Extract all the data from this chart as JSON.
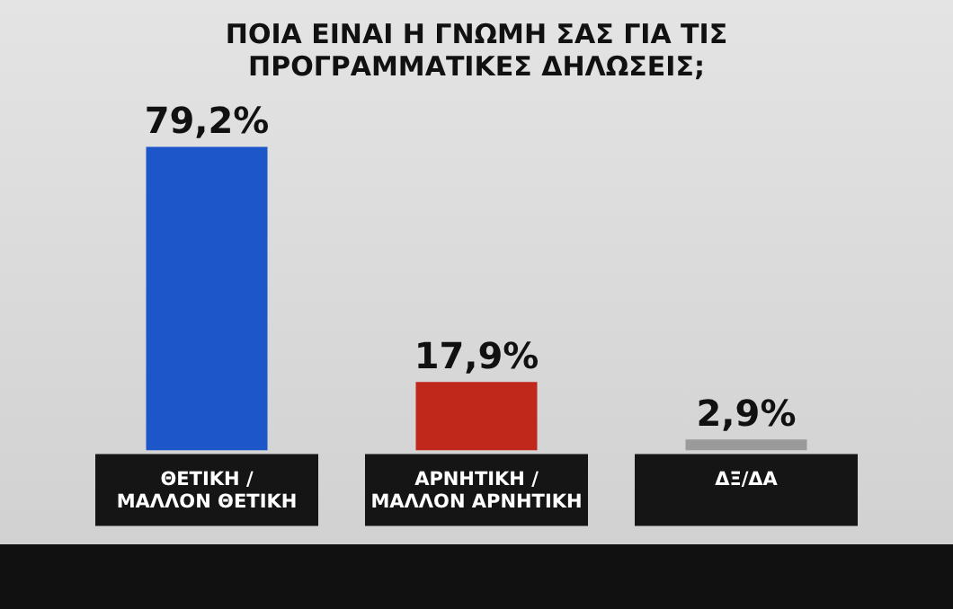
{
  "chart_data": {
    "type": "bar",
    "title": "ΠΟΙΑ ΕΙΝΑΙ Η ΓΝΩΜΗ ΣΑΣ ΓΙΑ ΤΙΣ ΠΡΟΓΡΑΜΜΑΤΙΚΕΣ ΔΗΛΩΣΕΙΣ;",
    "categories": [
      "ΘΕΤΙΚΗ / ΜΑΛΛΟΝ ΘΕΤΙΚΗ",
      "ΑΡΝΗΤΙΚΗ / ΜΑΛΛΟΝ ΑΡΝΗΤΙΚΗ",
      "ΔΞ/ΔΑ"
    ],
    "values": [
      79.2,
      17.9,
      2.9
    ],
    "colors": [
      "#1d56c8",
      "#c0281c",
      "#9a9a9a"
    ],
    "value_labels": [
      "79,2%",
      "17,9%",
      "2,9%"
    ],
    "grid": false,
    "legend": false
  }
}
